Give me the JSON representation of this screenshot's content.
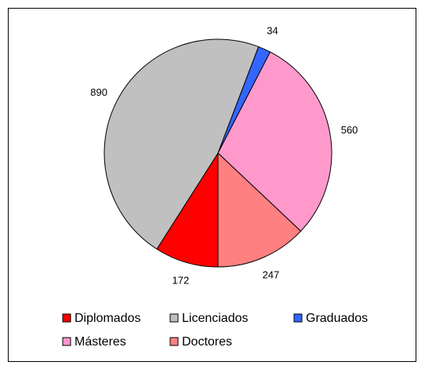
{
  "chart_data": {
    "type": "pie",
    "categories": [
      "Diplomados",
      "Licenciados",
      "Graduados",
      "Másteres",
      "Doctores"
    ],
    "values": [
      172,
      890,
      34,
      560,
      247
    ],
    "colors": [
      "#ff0000",
      "#c0c0c0",
      "#3366ff",
      "#ff99cc",
      "#ff8080"
    ],
    "legend": "bottom"
  }
}
